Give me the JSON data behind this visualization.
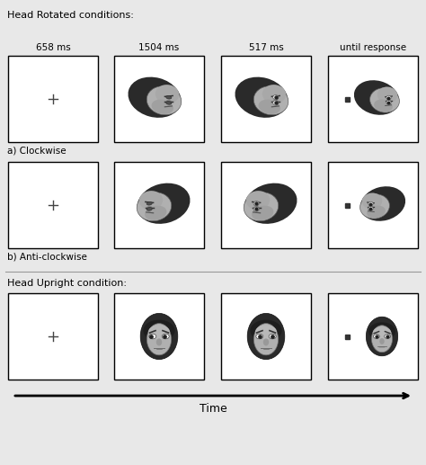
{
  "title_rotated": "Head Rotated conditions:",
  "title_upright": "Head Upright condition:",
  "time_labels": [
    "658 ms",
    "1504 ms",
    "517 ms",
    "until response"
  ],
  "label_a": "a) Clockwise",
  "label_b": "b) Anti-clockwise",
  "time_arrow_label": "Time",
  "bg_color": "#e8e8e8",
  "box_bg": "#ffffff",
  "box_edge": "#000000",
  "text_color": "#000000",
  "separator_color": "#aaaaaa",
  "hair_color": "#2a2a2a",
  "skin_color": "#a0a0a0",
  "skin_dark": "#808080",
  "eye_white": "#ffffff",
  "eye_dark": "#222222",
  "cross_color": "#444444",
  "square_color": "#333333"
}
